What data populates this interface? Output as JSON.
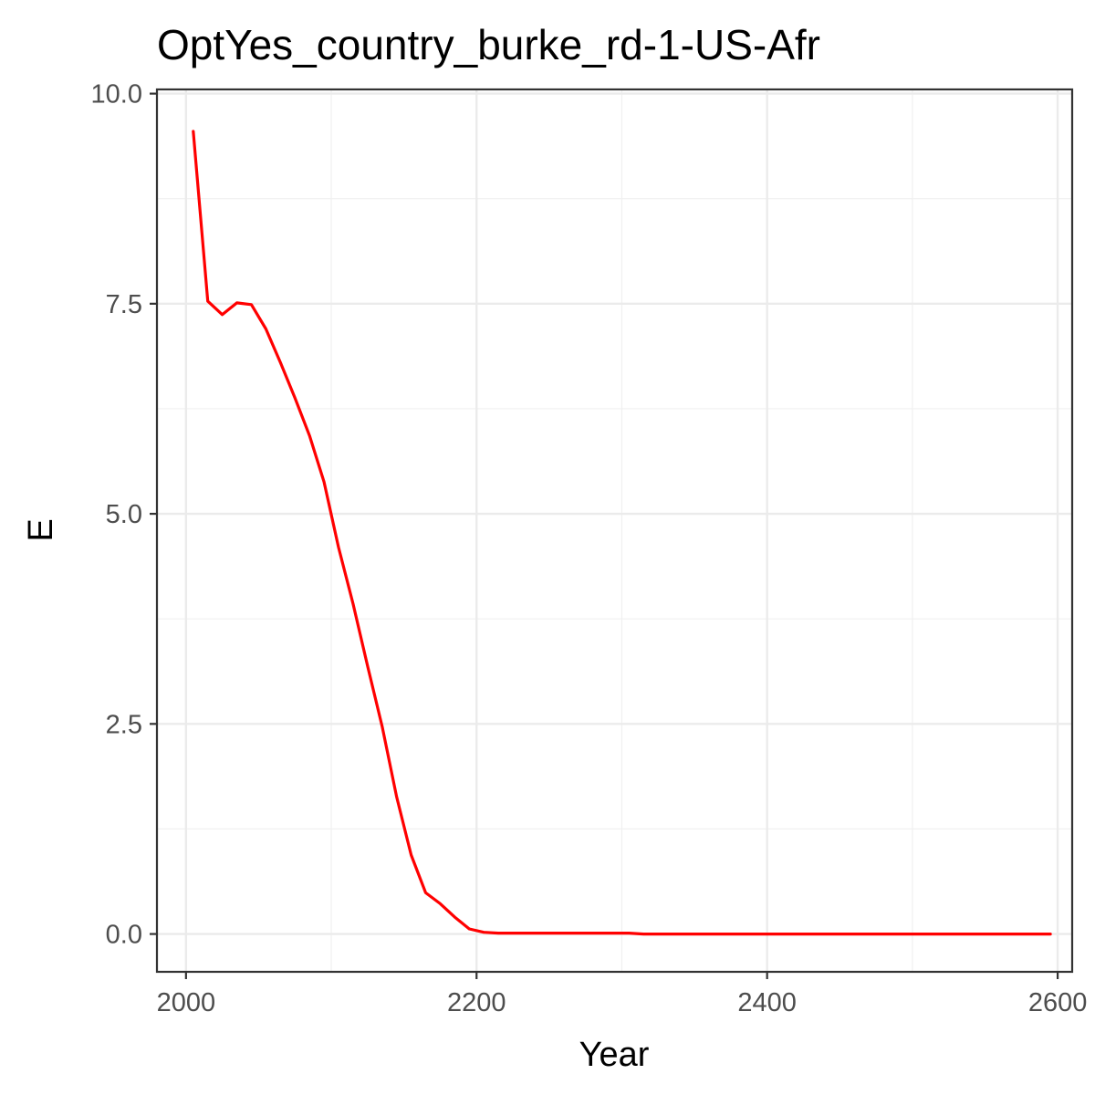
{
  "chart_data": {
    "type": "line",
    "title": "OptYes_country_burke_rd-1-US-Afr",
    "xlabel": "Year",
    "ylabel": "E",
    "xlim": [
      1980,
      2610
    ],
    "ylim": [
      -0.45,
      10.05
    ],
    "x_ticks": [
      2000,
      2200,
      2400,
      2600
    ],
    "y_ticks": [
      0,
      2.5,
      5,
      7.5,
      10
    ],
    "x_tick_labels": [
      "2000",
      "2200",
      "2400",
      "2600"
    ],
    "y_tick_labels": [
      "0.0",
      "2.5",
      "5.0",
      "7.5",
      "10.0"
    ],
    "grid": true,
    "series": [
      {
        "color": "#ff0000",
        "x": [
          2005,
          2015,
          2025,
          2035,
          2045,
          2055,
          2065,
          2075,
          2085,
          2095,
          2105,
          2115,
          2125,
          2135,
          2145,
          2155,
          2165,
          2175,
          2185,
          2195,
          2205,
          2215,
          2225,
          2235,
          2245,
          2255,
          2265,
          2275,
          2285,
          2295,
          2305,
          2315,
          2325,
          2335,
          2345,
          2355,
          2365,
          2375,
          2385,
          2395,
          2405,
          2415,
          2425,
          2435,
          2445,
          2455,
          2465,
          2475,
          2485,
          2495,
          2505,
          2515,
          2525,
          2535,
          2545,
          2555,
          2565,
          2575,
          2585,
          2595
        ],
        "y": [
          9.55,
          7.53,
          7.37,
          7.51,
          7.49,
          7.2,
          6.8,
          6.38,
          5.93,
          5.38,
          4.6,
          3.93,
          3.19,
          2.47,
          1.63,
          0.94,
          0.49,
          0.36,
          0.2,
          0.06,
          0.02,
          0.01,
          0.01,
          0.01,
          0.01,
          0.01,
          0.01,
          0.01,
          0.01,
          0.01,
          0.01,
          0.0,
          0.0,
          0.0,
          0.0,
          0.0,
          0.0,
          0.0,
          0.0,
          0.0,
          0.0,
          0.0,
          0.0,
          0.0,
          0.0,
          0.0,
          0.0,
          0.0,
          0.0,
          0.0,
          0.0,
          0.0,
          0.0,
          0.0,
          0.0,
          0.0,
          0.0,
          0.0,
          0.0,
          0.0
        ]
      }
    ]
  }
}
